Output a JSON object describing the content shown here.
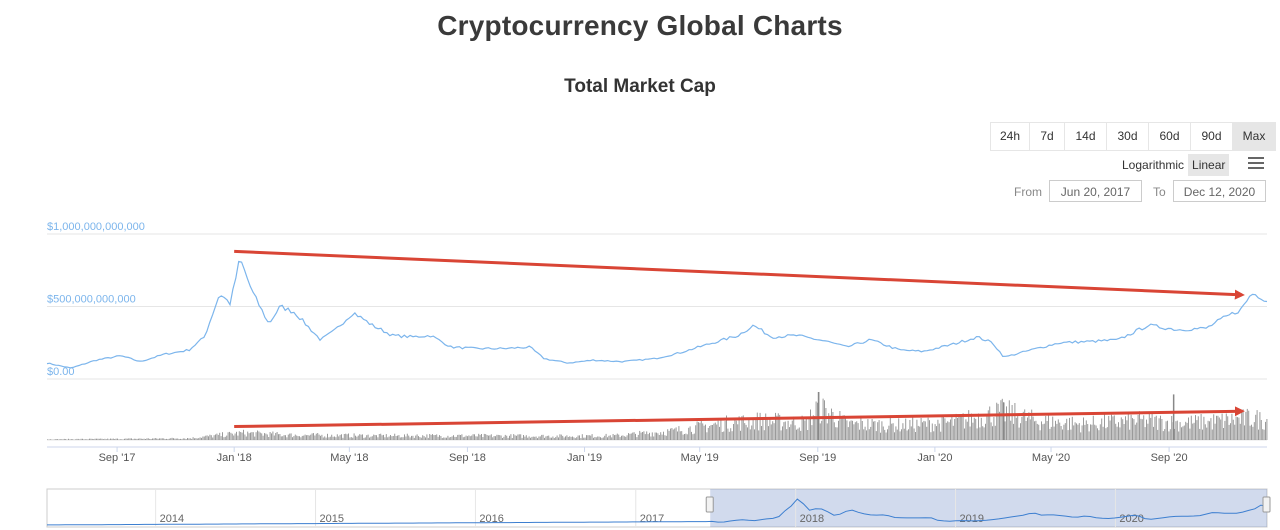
{
  "page": {
    "title": "Cryptocurrency Global Charts"
  },
  "chart_title": "Total Market Cap",
  "controls": {
    "ranges": [
      "24h",
      "7d",
      "14d",
      "30d",
      "60d",
      "90d",
      "Max"
    ],
    "active_range": "Max",
    "scale_options": [
      "Logarithmic",
      "Linear"
    ],
    "active_scale": "Linear",
    "menu_icon": "hamburger-menu-icon",
    "from_label": "From",
    "from_value": "Jun 20, 2017",
    "to_label": "To",
    "to_value": "Dec 12, 2020"
  },
  "chart_data": {
    "type": "line",
    "title": "Total Market Cap",
    "ylabel": "",
    "ylim": [
      0,
      1000000000000
    ],
    "yticks": [
      {
        "value": 0,
        "label": "$0.00"
      },
      {
        "value": 500000000000,
        "label": "$500,000,000,000"
      },
      {
        "value": 1000000000000,
        "label": "$1,000,000,000,000"
      }
    ],
    "xlim": [
      "2017-06-20",
      "2020-12-12"
    ],
    "xticks": [
      {
        "date": "2017-09-01",
        "label": "Sep '17"
      },
      {
        "date": "2018-01-01",
        "label": "Jan '18"
      },
      {
        "date": "2018-05-01",
        "label": "May '18"
      },
      {
        "date": "2018-09-01",
        "label": "Sep '18"
      },
      {
        "date": "2019-01-01",
        "label": "Jan '19"
      },
      {
        "date": "2019-05-01",
        "label": "May '19"
      },
      {
        "date": "2019-09-01",
        "label": "Sep '19"
      },
      {
        "date": "2020-01-01",
        "label": "Jan '20"
      },
      {
        "date": "2020-05-01",
        "label": "May '20"
      },
      {
        "date": "2020-09-01",
        "label": "Sep '20"
      }
    ],
    "grid": true,
    "series": [
      {
        "color": "#7cb5ec",
        "points": [
          [
            "2017-06-20",
            110000000000
          ],
          [
            "2017-07-15",
            75000000000
          ],
          [
            "2017-08-10",
            130000000000
          ],
          [
            "2017-09-05",
            160000000000
          ],
          [
            "2017-09-25",
            120000000000
          ],
          [
            "2017-10-20",
            170000000000
          ],
          [
            "2017-11-15",
            200000000000
          ],
          [
            "2017-12-01",
            290000000000
          ],
          [
            "2017-12-17",
            590000000000
          ],
          [
            "2017-12-28",
            520000000000
          ],
          [
            "2018-01-07",
            830000000000
          ],
          [
            "2018-01-20",
            600000000000
          ],
          [
            "2018-02-06",
            380000000000
          ],
          [
            "2018-02-18",
            500000000000
          ],
          [
            "2018-03-05",
            460000000000
          ],
          [
            "2018-04-01",
            270000000000
          ],
          [
            "2018-04-15",
            330000000000
          ],
          [
            "2018-05-05",
            460000000000
          ],
          [
            "2018-05-25",
            370000000000
          ],
          [
            "2018-06-15",
            300000000000
          ],
          [
            "2018-07-05",
            290000000000
          ],
          [
            "2018-07-25",
            300000000000
          ],
          [
            "2018-08-15",
            220000000000
          ],
          [
            "2018-09-10",
            210000000000
          ],
          [
            "2018-10-10",
            210000000000
          ],
          [
            "2018-11-05",
            220000000000
          ],
          [
            "2018-11-20",
            140000000000
          ],
          [
            "2018-12-15",
            110000000000
          ],
          [
            "2019-01-10",
            130000000000
          ],
          [
            "2019-02-10",
            120000000000
          ],
          [
            "2019-03-15",
            140000000000
          ],
          [
            "2019-04-10",
            180000000000
          ],
          [
            "2019-05-15",
            250000000000
          ],
          [
            "2019-06-10",
            300000000000
          ],
          [
            "2019-06-26",
            370000000000
          ],
          [
            "2019-07-15",
            290000000000
          ],
          [
            "2019-08-10",
            300000000000
          ],
          [
            "2019-09-10",
            260000000000
          ],
          [
            "2019-10-01",
            220000000000
          ],
          [
            "2019-10-26",
            270000000000
          ],
          [
            "2019-11-25",
            200000000000
          ],
          [
            "2019-12-20",
            190000000000
          ],
          [
            "2020-01-20",
            240000000000
          ],
          [
            "2020-02-14",
            290000000000
          ],
          [
            "2020-03-01",
            250000000000
          ],
          [
            "2020-03-13",
            150000000000
          ],
          [
            "2020-04-10",
            200000000000
          ],
          [
            "2020-05-10",
            250000000000
          ],
          [
            "2020-06-15",
            260000000000
          ],
          [
            "2020-07-10",
            270000000000
          ],
          [
            "2020-08-10",
            370000000000
          ],
          [
            "2020-09-10",
            340000000000
          ],
          [
            "2020-10-10",
            350000000000
          ],
          [
            "2020-10-25",
            410000000000
          ],
          [
            "2020-11-15",
            480000000000
          ],
          [
            "2020-11-26",
            590000000000
          ],
          [
            "2020-12-05",
            570000000000
          ],
          [
            "2020-12-12",
            540000000000
          ]
        ]
      }
    ],
    "volume_series": {
      "color": "#888888",
      "max": 100,
      "points": [
        [
          "2017-06-20",
          2
        ],
        [
          "2017-09-01",
          3
        ],
        [
          "2017-11-15",
          5
        ],
        [
          "2017-12-20",
          15
        ],
        [
          "2018-01-10",
          20
        ],
        [
          "2018-03-01",
          14
        ],
        [
          "2018-06-01",
          12
        ],
        [
          "2018-09-01",
          12
        ],
        [
          "2018-12-01",
          11
        ],
        [
          "2019-02-01",
          12
        ],
        [
          "2019-04-01",
          25
        ],
        [
          "2019-05-20",
          45
        ],
        [
          "2019-07-01",
          55
        ],
        [
          "2019-08-20",
          48
        ],
        [
          "2019-09-01",
          95
        ],
        [
          "2019-10-01",
          45
        ],
        [
          "2019-12-01",
          42
        ],
        [
          "2020-01-20",
          50
        ],
        [
          "2020-03-12",
          80
        ],
        [
          "2020-04-15",
          55
        ],
        [
          "2020-06-01",
          45
        ],
        [
          "2020-08-01",
          55
        ],
        [
          "2020-09-15",
          48
        ],
        [
          "2020-10-15",
          52
        ],
        [
          "2020-11-26",
          62
        ],
        [
          "2020-12-12",
          55
        ]
      ],
      "spikes": [
        [
          "2019-09-01",
          100
        ],
        [
          "2020-03-12",
          78
        ],
        [
          "2020-09-05",
          95
        ]
      ]
    },
    "navigator": {
      "labels": [
        "2014",
        "2015",
        "2016",
        "2017",
        "2018",
        "2019",
        "2020"
      ],
      "range": [
        "2013-04-28",
        "2020-12-12"
      ],
      "selected": [
        "2017-06-20",
        "2020-12-12"
      ]
    },
    "annotations": [
      {
        "type": "arrow",
        "color": "#d94535",
        "from": [
          "2018-01-01",
          880000000000
        ],
        "to": [
          "2020-11-20",
          580000000000
        ]
      },
      {
        "type": "arrow",
        "color": "#d94535",
        "on": "volume",
        "from": [
          "2018-01-01",
          28
        ],
        "to": [
          "2020-11-20",
          60
        ]
      }
    ]
  }
}
